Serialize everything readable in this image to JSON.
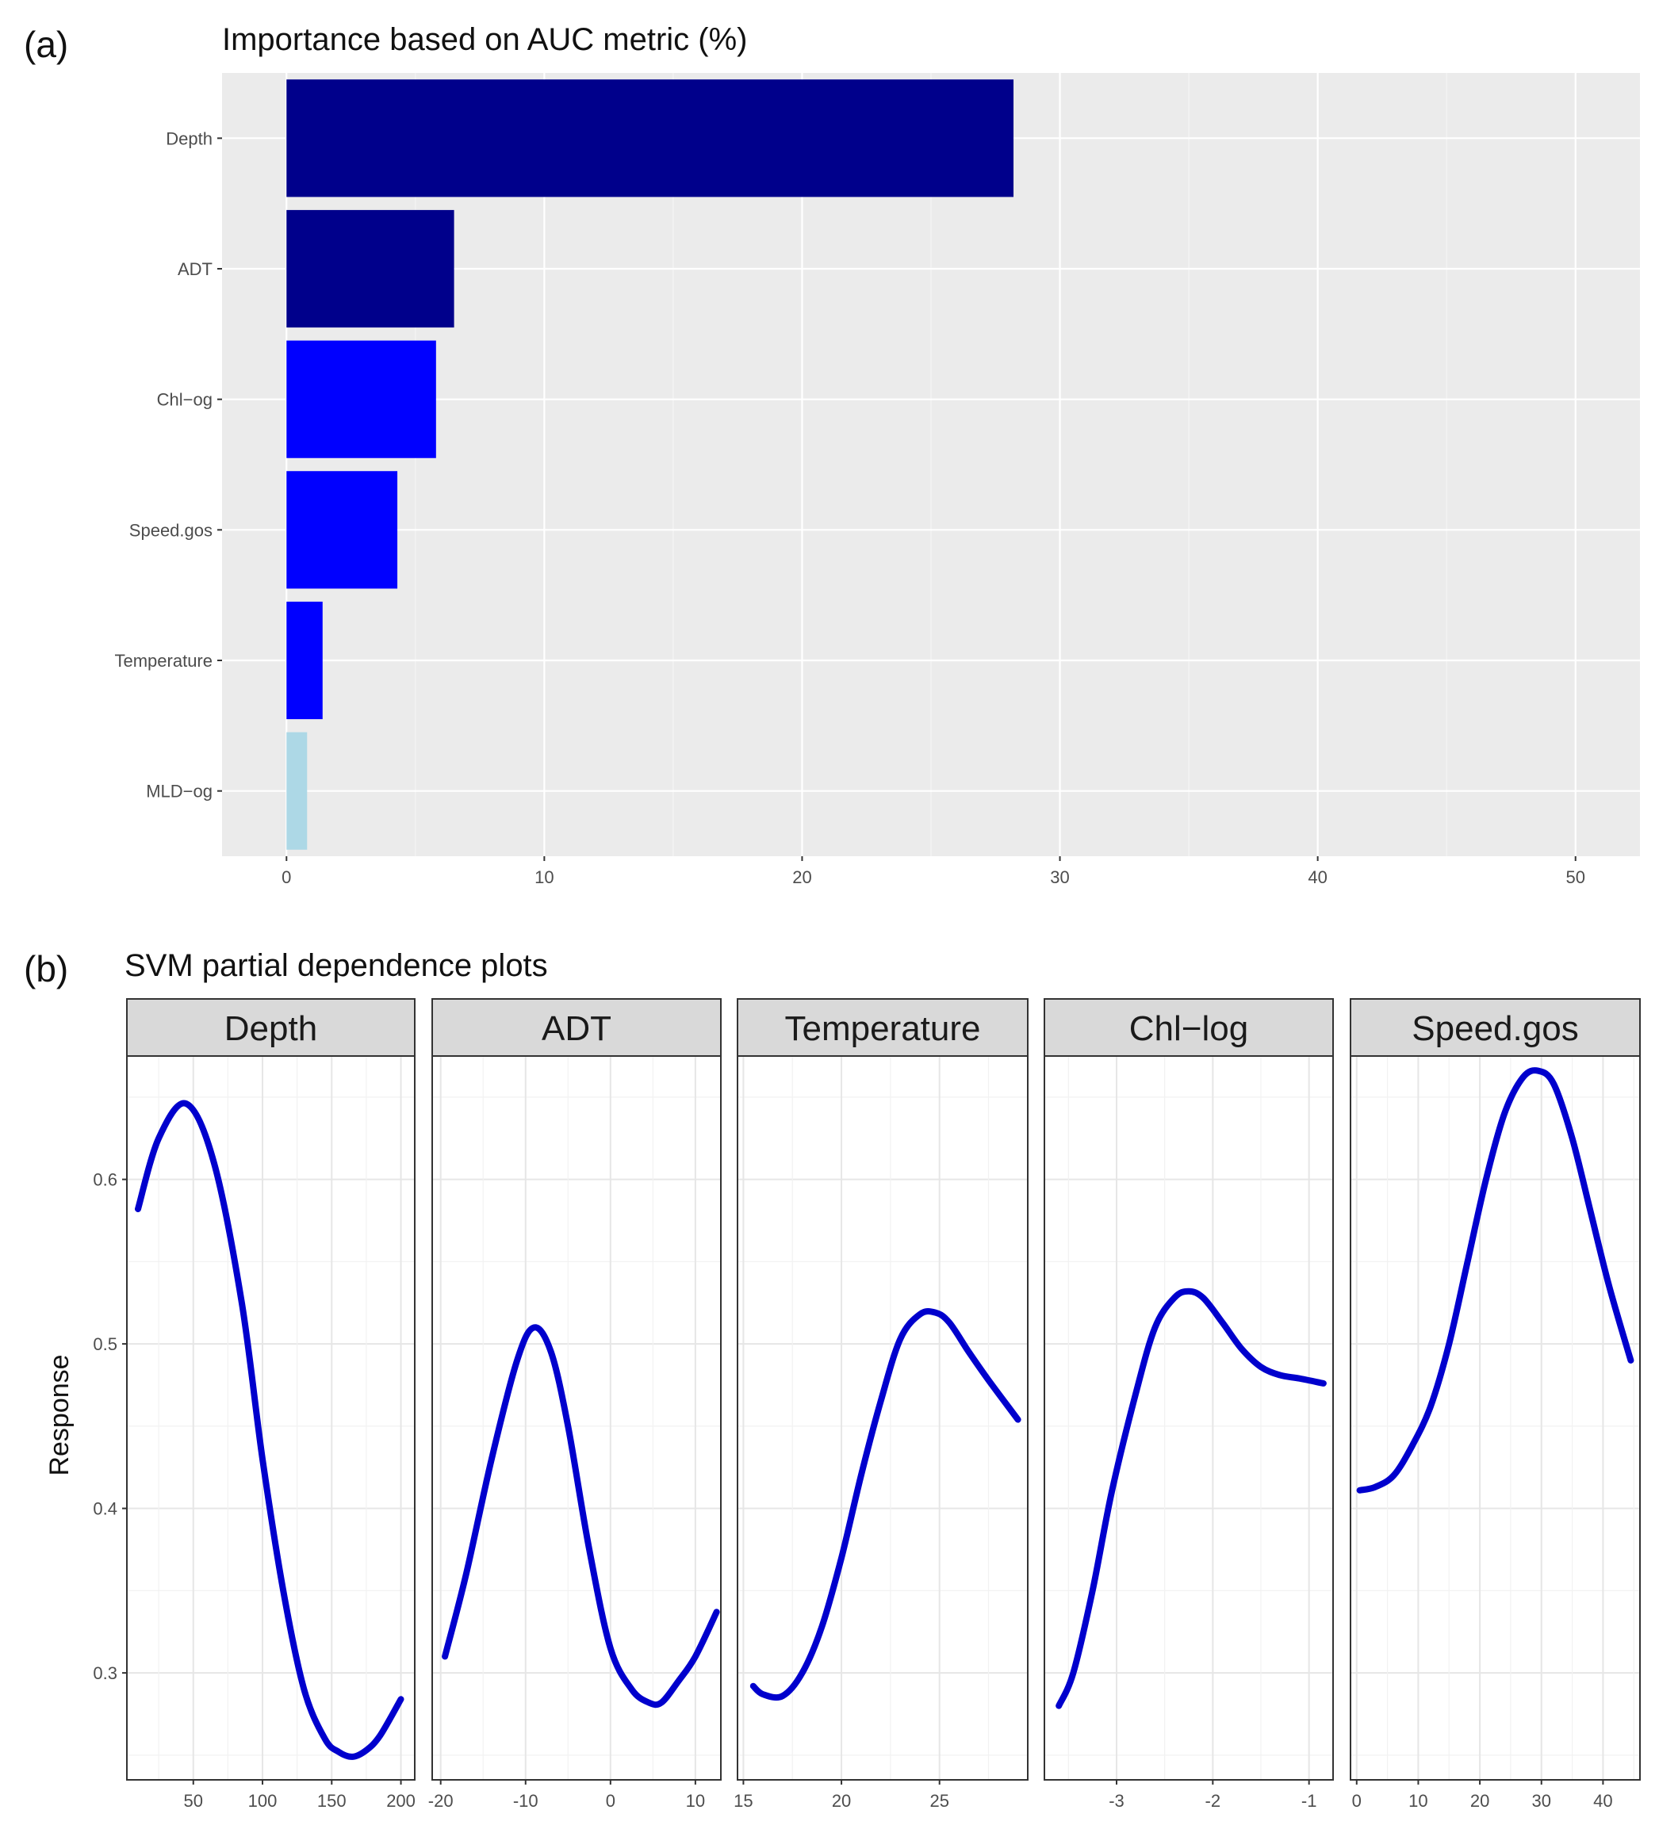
{
  "chart_data": [
    {
      "panel_label": "(a)",
      "type": "bar",
      "orientation": "horizontal",
      "title": "Importance based on AUC metric (%)",
      "categories": [
        "Depth",
        "ADT",
        "Chl−og",
        "Speed.gos",
        "Temperature",
        "MLD−og"
      ],
      "values": [
        28.2,
        6.5,
        5.8,
        4.3,
        1.4,
        0.8
      ],
      "bar_colors": [
        "#00008b",
        "#00008b",
        "#0000ff",
        "#0000ff",
        "#0000ff",
        "#add8e6"
      ],
      "xlim": [
        -2.5,
        52.5
      ],
      "xticks": [
        0,
        10,
        20,
        30,
        40,
        50
      ],
      "xticklabels": [
        "0",
        "10",
        "20",
        "30",
        "40",
        "50"
      ],
      "grid": true,
      "background": "#ebebeb"
    },
    {
      "panel_label": "(b)",
      "type": "line",
      "title": "SVM partial dependence plots",
      "ylabel": "Response",
      "ylim": [
        0.235,
        0.675
      ],
      "yticks": [
        0.3,
        0.4,
        0.5,
        0.6
      ],
      "yticklabels": [
        "0.3",
        "0.4",
        "0.5",
        "0.6"
      ],
      "line_color": "#0000cd",
      "facets": [
        {
          "name": "Depth",
          "xlim": [
            2,
            210
          ],
          "xticks": [
            50,
            100,
            150,
            200
          ],
          "xticklabels": [
            "50",
            "100",
            "150",
            "200"
          ],
          "x": [
            10,
            25,
            45,
            65,
            85,
            100,
            115,
            130,
            145,
            155,
            165,
            175,
            185,
            200
          ],
          "y": [
            0.582,
            0.625,
            0.646,
            0.61,
            0.525,
            0.43,
            0.35,
            0.29,
            0.26,
            0.252,
            0.249,
            0.253,
            0.262,
            0.284
          ]
        },
        {
          "name": "ADT",
          "xlim": [
            -21,
            13
          ],
          "xticks": [
            -20,
            -10,
            0,
            10
          ],
          "xticklabels": [
            "-20",
            "-10",
            "0",
            "10"
          ],
          "x": [
            -19.5,
            -17,
            -14,
            -11,
            -9,
            -7,
            -5,
            -2.5,
            0,
            2.5,
            4.5,
            6,
            8,
            10,
            12.5
          ],
          "y": [
            0.31,
            0.36,
            0.43,
            0.49,
            0.51,
            0.495,
            0.45,
            0.375,
            0.315,
            0.29,
            0.282,
            0.282,
            0.295,
            0.31,
            0.337
          ]
        },
        {
          "name": "Temperature",
          "xlim": [
            14.7,
            29.5
          ],
          "xticks": [
            15,
            20,
            25
          ],
          "xticklabels": [
            "15",
            "20",
            "25"
          ],
          "x": [
            15.5,
            16,
            17,
            18,
            19,
            20,
            21,
            22,
            23,
            24,
            24.8,
            25.5,
            26.5,
            27.5,
            29
          ],
          "y": [
            0.292,
            0.287,
            0.286,
            0.3,
            0.328,
            0.37,
            0.42,
            0.465,
            0.503,
            0.518,
            0.519,
            0.513,
            0.495,
            0.478,
            0.454
          ]
        },
        {
          "name": "Chl−log",
          "xlim": [
            -3.75,
            -0.75
          ],
          "xticks": [
            -3,
            -2,
            -1
          ],
          "xticklabels": [
            "-3",
            "-2",
            "-1"
          ],
          "x": [
            -3.6,
            -3.45,
            -3.25,
            -3.05,
            -2.8,
            -2.6,
            -2.4,
            -2.25,
            -2.1,
            -1.9,
            -1.7,
            -1.5,
            -1.3,
            -1.1,
            -0.85
          ],
          "y": [
            0.28,
            0.3,
            0.35,
            0.41,
            0.47,
            0.51,
            0.528,
            0.532,
            0.528,
            0.513,
            0.497,
            0.486,
            0.481,
            0.479,
            0.476
          ]
        },
        {
          "name": "Speed.gos",
          "xlim": [
            -1,
            46
          ],
          "xticks": [
            0,
            10,
            20,
            30,
            40
          ],
          "xticklabels": [
            "0",
            "10",
            "20",
            "30",
            "40"
          ],
          "x": [
            0.5,
            3,
            6,
            9,
            12,
            15,
            18,
            21,
            24,
            27,
            29.5,
            32,
            35,
            38,
            41,
            44.5
          ],
          "y": [
            0.411,
            0.413,
            0.42,
            0.438,
            0.462,
            0.5,
            0.55,
            0.6,
            0.64,
            0.662,
            0.666,
            0.658,
            0.625,
            0.58,
            0.535,
            0.49
          ]
        }
      ]
    }
  ]
}
